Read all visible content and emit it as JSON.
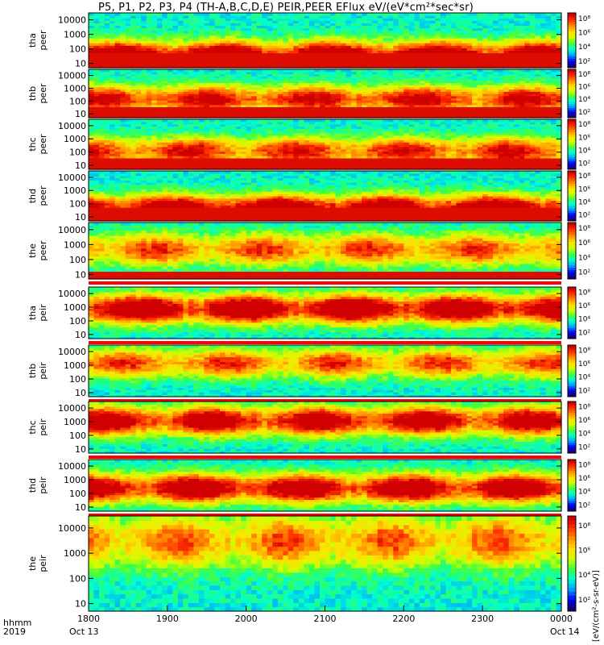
{
  "chart_data": {
    "type": "heatmap",
    "title": "P5, P1, P2, P3, P4 (TH-A,B,C,D,E) PEIR,PEER EFlux eV/(eV*cm²*sec*sr)",
    "x_tick_labels": [
      "1800",
      "1900",
      "2000",
      "2100",
      "2200",
      "2300",
      "0000"
    ],
    "x_date_labels": [
      "Oct 13",
      "Oct 14"
    ],
    "x_range": [
      "2019-10-13 18:00",
      "2019-10-14 00:00"
    ],
    "x_axis_caption": [
      "hhmm",
      "2019"
    ],
    "y_scale": "log",
    "y_range": [
      5,
      30000
    ],
    "y_tick_labels": [
      "10",
      "100",
      "1000",
      "10000"
    ],
    "colorbar_scale": "log",
    "colorbar_ticks": [
      "10²",
      "10⁴",
      "10⁶",
      "10⁸"
    ],
    "colorbar_units": "[eV/(cm²-s-sr-eV)]",
    "panels": [
      {
        "probe": "tha",
        "instrument": "peer",
        "label": "tha\npeer",
        "low_band_energy": 30,
        "core_energy": 30,
        "core_strength": 1.0
      },
      {
        "probe": "thb",
        "instrument": "peer",
        "label": "thb\npeer",
        "low_band_energy": 25,
        "core_energy": 150,
        "core_strength": 0.75
      },
      {
        "probe": "thc",
        "instrument": "peer",
        "label": "thc\npeer",
        "low_band_energy": 20,
        "core_energy": 120,
        "core_strength": 0.7
      },
      {
        "probe": "thd",
        "instrument": "peer",
        "label": "thd\npeer",
        "low_band_energy": 30,
        "core_energy": 40,
        "core_strength": 1.0
      },
      {
        "probe": "the",
        "instrument": "peer",
        "label": "the\npeer",
        "low_band_energy": 10,
        "core_energy": 500,
        "core_strength": 0.6
      },
      {
        "probe": "tha",
        "instrument": "peir",
        "label": "tha\npeir",
        "low_band_energy": 0,
        "core_energy": 800,
        "core_strength": 0.95
      },
      {
        "probe": "thb",
        "instrument": "peir",
        "label": "thb\npeir",
        "low_band_energy": 0,
        "core_energy": 1500,
        "core_strength": 0.6
      },
      {
        "probe": "thc",
        "instrument": "peir",
        "label": "thc\npeir",
        "low_band_energy": 0,
        "core_energy": 1200,
        "core_strength": 0.85
      },
      {
        "probe": "thd",
        "instrument": "peir",
        "label": "thd\npeir",
        "low_band_energy": 0,
        "core_energy": 250,
        "core_strength": 0.9
      },
      {
        "probe": "the",
        "instrument": "peir",
        "label": "the\npeir",
        "low_band_energy": 0,
        "core_energy": 3000,
        "core_strength": 0.55
      }
    ],
    "colors": {
      "colormap": [
        "#1a0066",
        "#0000ff",
        "#00a0ff",
        "#00ffd0",
        "#40ff40",
        "#d0ff00",
        "#ffe000",
        "#ff9000",
        "#ff3000",
        "#d00000"
      ],
      "fill_gap_band": "#ff0000",
      "missing": "#000000"
    }
  }
}
